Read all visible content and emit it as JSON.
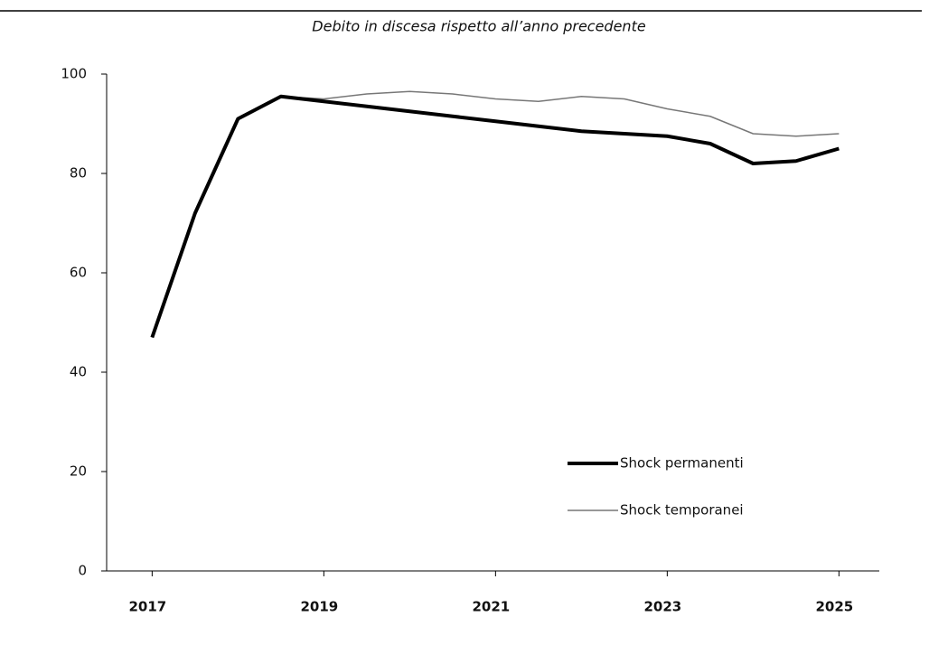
{
  "chart_data": {
    "type": "line",
    "title": "Debito in discesa rispetto all’anno precedente",
    "x": [
      2017,
      2017.5,
      2018,
      2018.5,
      2019,
      2019.5,
      2020,
      2020.5,
      2021,
      2021.5,
      2022,
      2022.5,
      2023,
      2023.5,
      2024,
      2024.5,
      2025
    ],
    "series": [
      {
        "name": "Shock permanenti",
        "color": "#000000",
        "width": 4,
        "values": [
          47,
          72,
          91,
          95.5,
          94.5,
          93.5,
          92.5,
          91.5,
          90.5,
          89.5,
          88.5,
          88,
          87.5,
          86,
          82,
          82.5,
          85
        ]
      },
      {
        "name": "Shock temporanei",
        "color": "#777777",
        "width": 1.5,
        "values": [
          47,
          72,
          91,
          95.5,
          95,
          96,
          96.5,
          96,
          95,
          94.5,
          95.5,
          95,
          93,
          91.5,
          88,
          87.5,
          88
        ]
      }
    ],
    "xlim": [
      2016.47,
      2025.47
    ],
    "xticks": [
      2017,
      2019,
      2021,
      2023,
      2025
    ],
    "ylim": [
      0,
      100
    ],
    "yticks": [
      0,
      20,
      40,
      60,
      80,
      100
    ],
    "grid": false
  }
}
